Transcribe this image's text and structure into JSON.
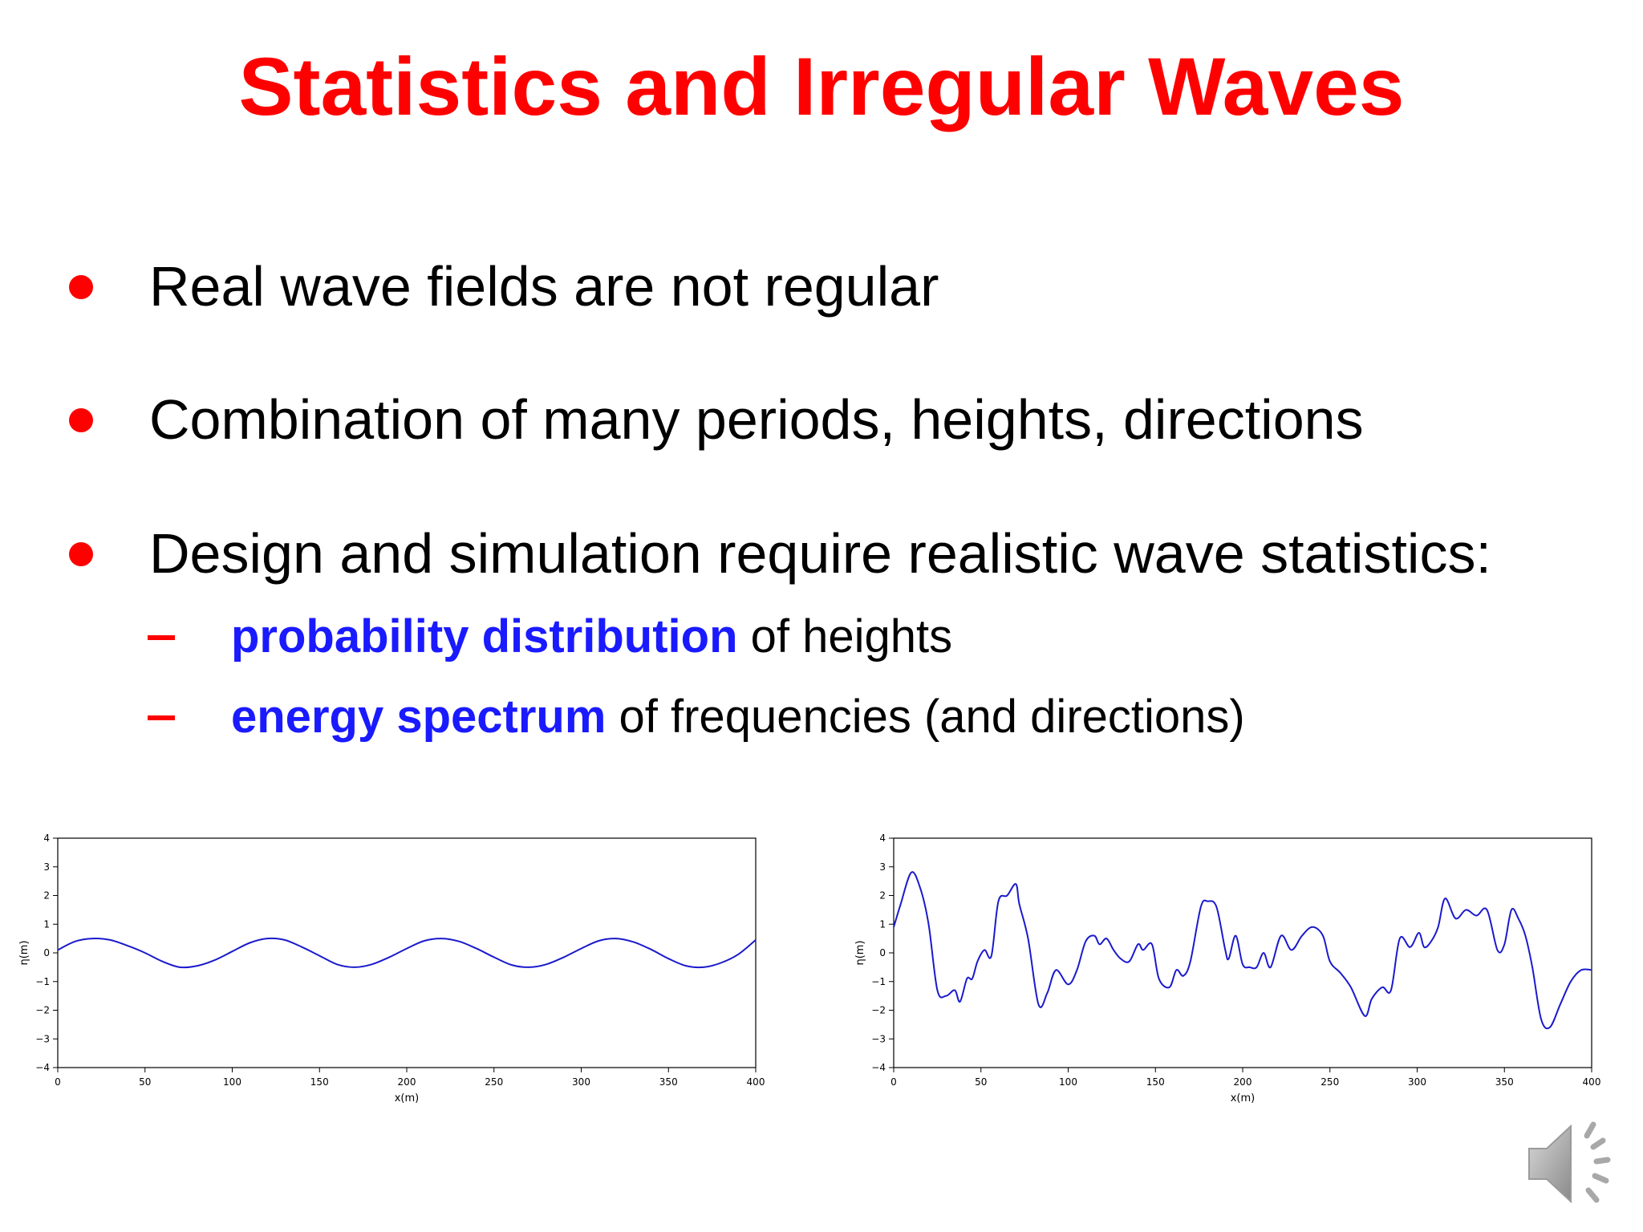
{
  "slide": {
    "title": "Statistics and Irregular Waves",
    "bullets": [
      {
        "text": "Real wave fields are not regular"
      },
      {
        "text": "Combination of many periods, heights, directions"
      },
      {
        "text": "Design and simulation require realistic wave statistics:"
      }
    ],
    "subbullets": [
      {
        "highlight": "probability distribution",
        "rest": " of heights"
      },
      {
        "highlight": "energy spectrum",
        "rest": " of frequencies (and directions)"
      }
    ],
    "colors": {
      "title": "#ff0000",
      "bullet": "#ff0000",
      "highlight": "#1a1aff",
      "curve": "#1a1acc"
    },
    "icons": {
      "audio": "speaker-icon"
    }
  },
  "chart_data": [
    {
      "type": "line",
      "xlabel": "x(m)",
      "ylabel": "η(m)",
      "xlim": [
        0,
        400
      ],
      "ylim": [
        -4,
        4
      ],
      "xticks": [
        0,
        50,
        100,
        150,
        200,
        250,
        300,
        350,
        400
      ],
      "yticks": [
        4,
        3,
        2,
        1,
        0,
        -1,
        -2,
        -3,
        -4
      ],
      "series": [
        {
          "x": [
            0,
            10,
            20,
            30,
            40,
            50,
            60,
            70,
            80,
            90,
            100,
            110,
            120,
            130,
            140,
            150,
            160,
            170,
            180,
            190,
            200,
            210,
            220,
            230,
            240,
            250,
            260,
            270,
            280,
            290,
            300,
            310,
            320,
            330,
            340,
            350,
            360,
            370,
            380,
            390,
            400
          ],
          "y": [
            0.1,
            0.4,
            0.5,
            0.45,
            0.25,
            0.0,
            -0.3,
            -0.5,
            -0.45,
            -0.25,
            0.05,
            0.35,
            0.5,
            0.45,
            0.2,
            -0.1,
            -0.4,
            -0.5,
            -0.4,
            -0.15,
            0.15,
            0.42,
            0.5,
            0.4,
            0.15,
            -0.15,
            -0.42,
            -0.5,
            -0.4,
            -0.15,
            0.15,
            0.42,
            0.5,
            0.38,
            0.12,
            -0.2,
            -0.45,
            -0.5,
            -0.35,
            -0.05,
            0.45
          ]
        }
      ]
    },
    {
      "type": "line",
      "xlabel": "x(m)",
      "ylabel": "η(m)",
      "xlim": [
        0,
        400
      ],
      "ylim": [
        -4,
        4
      ],
      "xticks": [
        0,
        50,
        100,
        150,
        200,
        250,
        300,
        350,
        400
      ],
      "yticks": [
        4,
        3,
        2,
        1,
        0,
        -1,
        -2,
        -3,
        -4
      ],
      "series": [
        {
          "x": [
            0,
            4,
            10,
            15,
            20,
            25,
            30,
            35,
            38,
            42,
            45,
            48,
            52,
            56,
            60,
            65,
            70,
            72,
            77,
            83,
            88,
            93,
            100,
            105,
            110,
            115,
            118,
            122,
            126,
            130,
            135,
            140,
            143,
            148,
            152,
            158,
            162,
            166,
            170,
            176,
            180,
            185,
            190,
            192,
            196,
            200,
            204,
            208,
            212,
            216,
            222,
            228,
            234,
            240,
            246,
            250,
            256,
            262,
            270,
            274,
            280,
            285,
            290,
            296,
            301,
            304,
            308,
            312,
            316,
            322,
            328,
            334,
            340,
            346,
            350,
            354,
            358,
            362,
            366,
            371,
            376,
            382,
            388,
            394,
            400
          ],
          "y": [
            0.9,
            1.7,
            2.8,
            2.3,
            1.0,
            -1.3,
            -1.5,
            -1.3,
            -1.7,
            -0.9,
            -0.9,
            -0.3,
            0.1,
            -0.1,
            1.8,
            2.0,
            2.4,
            1.7,
            0.5,
            -1.8,
            -1.4,
            -0.6,
            -1.1,
            -0.6,
            0.4,
            0.6,
            0.3,
            0.5,
            0.1,
            -0.2,
            -0.3,
            0.3,
            0.1,
            0.3,
            -0.9,
            -1.2,
            -0.6,
            -0.8,
            -0.3,
            1.6,
            1.8,
            1.6,
            0.1,
            -0.2,
            0.6,
            -0.4,
            -0.5,
            -0.5,
            0.0,
            -0.5,
            0.6,
            0.1,
            0.6,
            0.9,
            0.6,
            -0.3,
            -0.7,
            -1.2,
            -2.2,
            -1.6,
            -1.2,
            -1.3,
            0.5,
            0.2,
            0.7,
            0.2,
            0.4,
            0.9,
            1.9,
            1.2,
            1.5,
            1.3,
            1.5,
            0.1,
            0.3,
            1.5,
            1.2,
            0.6,
            -0.5,
            -2.3,
            -2.6,
            -1.8,
            -1.0,
            -0.6,
            -0.6
          ]
        }
      ]
    }
  ]
}
